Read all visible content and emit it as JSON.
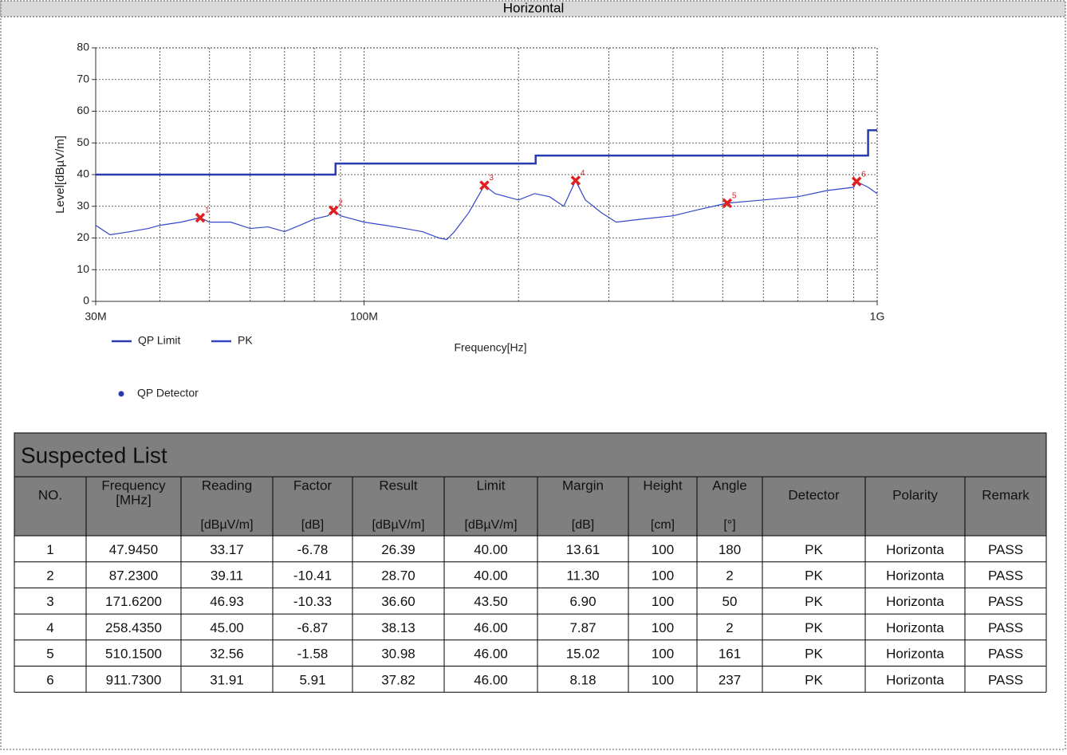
{
  "header": {
    "title": "Horizontal"
  },
  "chart_data": {
    "type": "line",
    "xlabel": "Frequency[Hz]",
    "ylabel": "Level[dBµV/m]",
    "log_x": true,
    "grid": true,
    "xlim": [
      30000000,
      1000000000
    ],
    "ylim": [
      0,
      80
    ],
    "xticks": [
      {
        "value": 30000000,
        "label": "30M"
      },
      {
        "value": 100000000,
        "label": "100M"
      },
      {
        "value": 1000000000,
        "label": "1G"
      }
    ],
    "yticks": [
      0,
      10,
      20,
      30,
      40,
      50,
      60,
      70,
      80
    ],
    "series": [
      {
        "name": "QP Limit",
        "color": "#2a3ab0",
        "x": [
          30000000,
          88000000,
          88000000,
          216000000,
          216000000,
          960000000,
          960000000,
          1000000000
        ],
        "values": [
          40,
          40,
          43.5,
          43.5,
          46,
          46,
          54,
          54
        ]
      },
      {
        "name": "PK",
        "color": "#3346c8",
        "x": [
          30000000,
          32000000,
          35000000,
          38000000,
          40000000,
          44000000,
          47945000,
          50000000,
          55000000,
          60000000,
          65000000,
          70000000,
          75000000,
          80000000,
          85000000,
          87230000,
          90000000,
          95000000,
          100000000,
          110000000,
          120000000,
          130000000,
          140000000,
          145000000,
          150000000,
          160000000,
          171620000,
          180000000,
          200000000,
          215000000,
          230000000,
          245000000,
          258435000,
          270000000,
          290000000,
          310000000,
          350000000,
          400000000,
          450000000,
          510150000,
          600000000,
          700000000,
          800000000,
          900000000,
          911730000,
          960000000,
          1000000000
        ],
        "values": [
          24,
          21,
          22,
          23,
          24,
          25,
          26.4,
          25,
          25,
          23,
          23.5,
          22,
          24,
          26,
          27,
          28.7,
          27,
          26,
          25,
          24,
          23,
          22,
          20,
          19.5,
          22,
          28,
          36.6,
          34,
          32,
          34,
          33,
          30,
          38.1,
          32,
          28,
          25,
          26,
          27,
          29,
          31,
          32,
          33,
          35,
          36,
          37.8,
          36,
          34
        ]
      }
    ],
    "markers": {
      "name": "QP Detector",
      "color": "#e02020",
      "x": [
        47945000,
        87230000,
        171620000,
        258435000,
        510150000,
        911730000
      ],
      "values": [
        26.39,
        28.7,
        36.6,
        38.13,
        30.98,
        37.82
      ],
      "labels": [
        "1",
        "2",
        "3",
        "4",
        "5",
        "6"
      ]
    }
  },
  "table": {
    "title": "Suspected List",
    "columns": [
      {
        "lines": [
          "NO."
        ]
      },
      {
        "lines": [
          "Frequency",
          "[MHz]"
        ]
      },
      {
        "lines": [
          "Reading"
        ],
        "unit": "[dBµV/m]"
      },
      {
        "lines": [
          "Factor"
        ],
        "unit": "[dB]"
      },
      {
        "lines": [
          "Result"
        ],
        "unit": "[dBµV/m]"
      },
      {
        "lines": [
          "Limit"
        ],
        "unit": "[dBµV/m]"
      },
      {
        "lines": [
          "Margin"
        ],
        "unit": "[dB]"
      },
      {
        "lines": [
          "Height"
        ],
        "unit": "[cm]"
      },
      {
        "lines": [
          "Angle"
        ],
        "unit": "[°]"
      },
      {
        "lines": [
          "Detector"
        ]
      },
      {
        "lines": [
          "Polarity"
        ]
      },
      {
        "lines": [
          "Remark"
        ]
      }
    ],
    "rows": [
      [
        "1",
        "47.9450",
        "33.17",
        "-6.78",
        "26.39",
        "40.00",
        "13.61",
        "100",
        "180",
        "PK",
        "Horizonta",
        "PASS"
      ],
      [
        "2",
        "87.2300",
        "39.11",
        "-10.41",
        "28.70",
        "40.00",
        "11.30",
        "100",
        "2",
        "PK",
        "Horizonta",
        "PASS"
      ],
      [
        "3",
        "171.6200",
        "46.93",
        "-10.33",
        "36.60",
        "43.50",
        "6.90",
        "100",
        "50",
        "PK",
        "Horizonta",
        "PASS"
      ],
      [
        "4",
        "258.4350",
        "45.00",
        "-6.87",
        "38.13",
        "46.00",
        "7.87",
        "100",
        "2",
        "PK",
        "Horizonta",
        "PASS"
      ],
      [
        "5",
        "510.1500",
        "32.56",
        "-1.58",
        "30.98",
        "46.00",
        "15.02",
        "100",
        "161",
        "PK",
        "Horizonta",
        "PASS"
      ],
      [
        "6",
        "911.7300",
        "31.91",
        "5.91",
        "37.82",
        "46.00",
        "8.18",
        "100",
        "237",
        "PK",
        "Horizonta",
        "PASS"
      ]
    ]
  }
}
